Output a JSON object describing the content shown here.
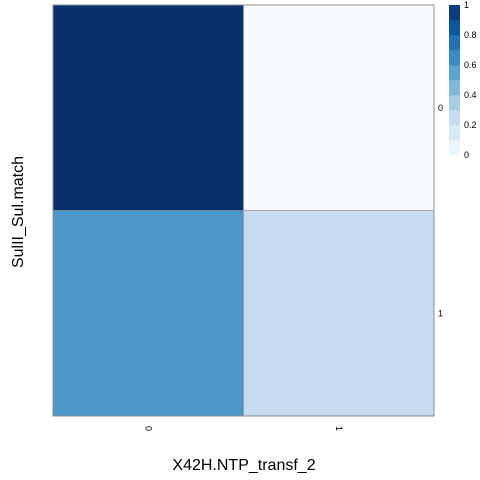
{
  "chart_data": {
    "type": "heatmap",
    "title": "",
    "xlabel": "X42H.NTP_transf_2",
    "ylabel": "SulII_Sul.match",
    "x_categories": [
      "0",
      "1"
    ],
    "y_categories": [
      "0",
      "1"
    ],
    "values": [
      [
        1.0,
        0.0
      ],
      [
        0.6,
        0.25
      ]
    ],
    "colorbar": {
      "min": 0,
      "max": 1,
      "tick_labels": [
        "0",
        "0.2",
        "0.4",
        "0.6",
        "0.8",
        "1"
      ],
      "tick_values": [
        0,
        0.2,
        0.4,
        0.6,
        0.8,
        1
      ],
      "palette": [
        "#f7fbff",
        "#deebf7",
        "#c6dbef",
        "#9ecae1",
        "#6baed6",
        "#4292c6",
        "#2171b5",
        "#08519c",
        "#08306b"
      ],
      "placement": "right"
    },
    "grid": false
  }
}
